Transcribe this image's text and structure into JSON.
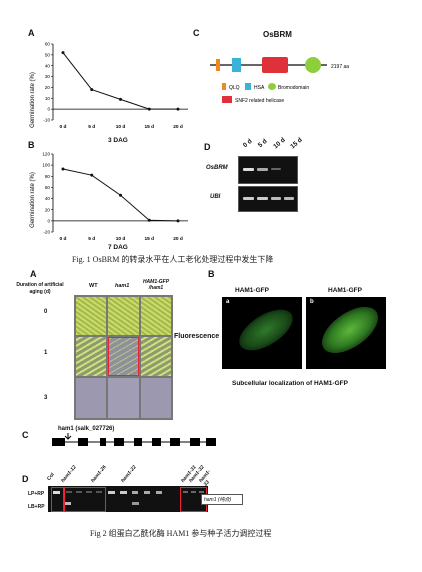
{
  "figure1": {
    "panel_a": {
      "letter": "A",
      "dag_label": "3 DAG"
    },
    "panel_b": {
      "letter": "B",
      "dag_label": "7 DAG"
    },
    "panel_c": {
      "letter": "C",
      "title": "OsBRM",
      "length_label": "2197 aa",
      "legend": {
        "qlq": "QLQ",
        "hsa": "HSA",
        "bromo": "Bromodomain",
        "snf2": "SNF2 related helicase"
      },
      "colors": {
        "qlq": "#f08a1c",
        "hsa": "#3bb3d6",
        "snf2": "#e0303a",
        "bromo": "#8ccf3a",
        "line": "#333333"
      }
    },
    "panel_d": {
      "letter": "D",
      "lane_labels": [
        "0 d",
        "5 d",
        "10 d",
        "15 d"
      ],
      "row_labels": [
        "OsBRM",
        "UBI"
      ]
    },
    "caption": "Fig. 1 OsBRM 的转录水平在人工老化处理过程中发生下降"
  },
  "chart_data": [
    {
      "type": "line",
      "title": "",
      "xlabel": "",
      "ylabel": "Germination rate (%)",
      "x": [
        "0 d",
        "5 d",
        "10 d",
        "15 d",
        "20 d"
      ],
      "values": [
        52,
        18,
        9,
        0,
        0
      ],
      "ylim": [
        -10,
        60
      ],
      "yticks": [
        -10,
        0,
        10,
        20,
        30,
        40,
        50,
        60
      ]
    },
    {
      "type": "line",
      "title": "",
      "xlabel": "",
      "ylabel": "Germination rate (%)",
      "x": [
        "0 d",
        "5 d",
        "10 d",
        "15 d",
        "20 d"
      ],
      "values": [
        93,
        82,
        46,
        1,
        0
      ],
      "ylim": [
        -20,
        120
      ],
      "yticks": [
        -20,
        0,
        20,
        40,
        60,
        80,
        100,
        120
      ]
    }
  ],
  "figure2": {
    "panel_a": {
      "letter": "A",
      "duration_label": "Duration of artificial aging (d)",
      "columns": [
        "WT",
        "ham1",
        "HAM1-GFP /ham1"
      ],
      "rows": [
        "0",
        "1",
        "3"
      ]
    },
    "panel_b": {
      "letter": "B",
      "fluorescence_label": "Fluorescence",
      "image_titles": [
        "HAM1-GFP",
        "HAM1-GFP"
      ],
      "image_letters": [
        "a",
        "b"
      ],
      "subtitle": "Subcellular localization of HAM1-GFP"
    },
    "panel_c": {
      "letter": "C",
      "allele_label": "ham1 (salk_027726)"
    },
    "panel_d": {
      "letter": "D",
      "lane_labels": [
        "Col",
        "ham1-12",
        "ham1-26",
        "ham1-22",
        "ham1-31",
        "ham1-32",
        "ham1-33"
      ],
      "row_labels": [
        "LP+RP",
        "LB+RP"
      ],
      "right_label": "ham1 (纯合)"
    },
    "caption": "Fig 2 组蛋白乙酰化酶 HAM1 参与种子活力调控过程"
  }
}
